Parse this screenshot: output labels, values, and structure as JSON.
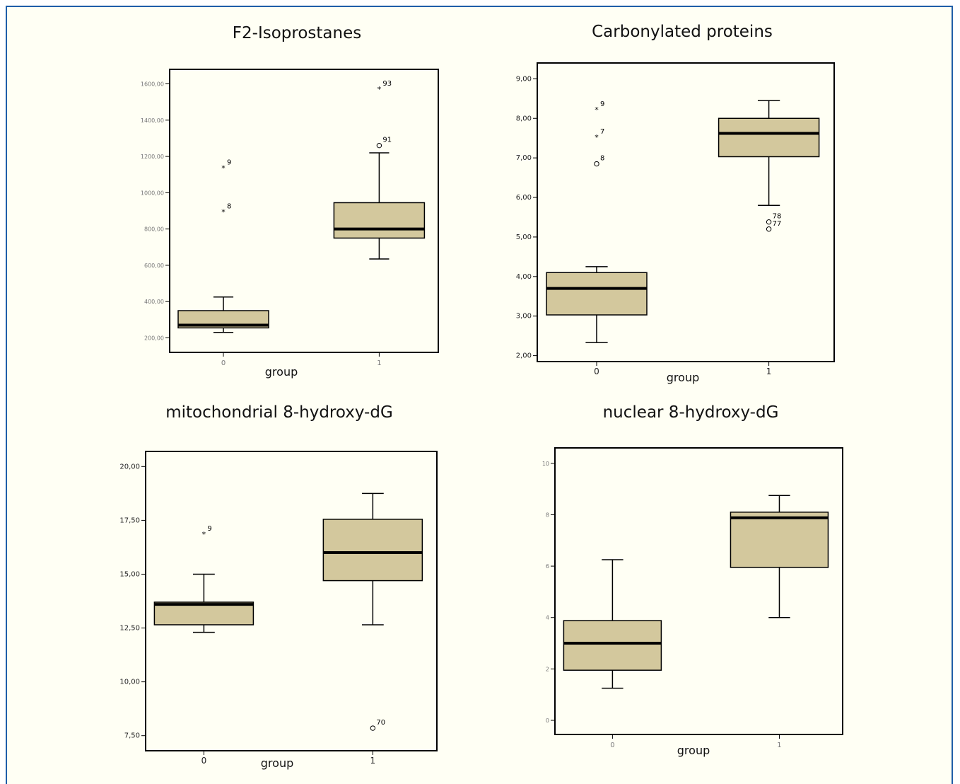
{
  "colors": {
    "box_fill": "#d3c89d",
    "frame_border": "#1f5ea8",
    "background": "#fffff4"
  },
  "chart_data": [
    {
      "type": "boxplot",
      "title": "F2-Isoprostanes",
      "xlabel": "group",
      "ylabel": "",
      "categories": [
        "0",
        "1"
      ],
      "ylim": [
        120,
        1680
      ],
      "yticks": [
        200,
        400,
        600,
        800,
        1000,
        1200,
        1400,
        1600
      ],
      "ytick_labels": [
        "200,00",
        "400,00",
        "600,00",
        "800,00",
        "1000,00",
        "1200,00",
        "1400,00",
        "1600,00"
      ],
      "boxes": [
        {
          "group": "0",
          "whisker_low": 230,
          "q1": 255,
          "median": 270,
          "q3": 350,
          "whisker_high": 425
        },
        {
          "group": "1",
          "whisker_low": 635,
          "q1": 750,
          "median": 800,
          "q3": 945,
          "whisker_high": 1220
        }
      ],
      "outliers": [
        {
          "group": "0",
          "value": 1135,
          "label": "9",
          "marker": "star"
        },
        {
          "group": "0",
          "value": 895,
          "label": "8",
          "marker": "star"
        },
        {
          "group": "1",
          "value": 1570,
          "label": "93",
          "marker": "star"
        },
        {
          "group": "1",
          "value": 1260,
          "label": "91",
          "marker": "circle"
        }
      ]
    },
    {
      "type": "boxplot",
      "title": "Carbonylated proteins",
      "xlabel": "group",
      "ylabel": "",
      "categories": [
        "0",
        "1"
      ],
      "ylim": [
        1.85,
        9.4
      ],
      "yticks": [
        2,
        3,
        4,
        5,
        6,
        7,
        8,
        9
      ],
      "ytick_labels": [
        "2,00",
        "3,00",
        "4,00",
        "5,00",
        "6,00",
        "7,00",
        "8,00",
        "9,00"
      ],
      "boxes": [
        {
          "group": "0",
          "whisker_low": 2.33,
          "q1": 3.03,
          "median": 3.7,
          "q3": 4.1,
          "whisker_high": 4.25
        },
        {
          "group": "1",
          "whisker_low": 5.8,
          "q1": 7.03,
          "median": 7.62,
          "q3": 8.0,
          "whisker_high": 8.45
        }
      ],
      "outliers": [
        {
          "group": "0",
          "value": 8.22,
          "label": "9",
          "marker": "star"
        },
        {
          "group": "0",
          "value": 7.52,
          "label": "7",
          "marker": "star"
        },
        {
          "group": "0",
          "value": 6.85,
          "label": "8",
          "marker": "circle"
        },
        {
          "group": "1",
          "value": 5.38,
          "label": "78",
          "marker": "circle"
        },
        {
          "group": "1",
          "value": 5.2,
          "label": "77",
          "marker": "circle"
        }
      ]
    },
    {
      "type": "boxplot",
      "title": "mitochondrial 8-hydroxy-dG",
      "xlabel": "group",
      "ylabel": "",
      "categories": [
        "0",
        "1"
      ],
      "ylim": [
        6.8,
        20.7
      ],
      "yticks": [
        7.5,
        10,
        12.5,
        15,
        17.5,
        20
      ],
      "ytick_labels": [
        "7,50",
        "10,00",
        "12,50",
        "15,00",
        "17,50",
        "20,00"
      ],
      "boxes": [
        {
          "group": "0",
          "whisker_low": 12.3,
          "q1": 12.65,
          "median": 13.6,
          "q3": 13.7,
          "whisker_high": 15.0
        },
        {
          "group": "1",
          "whisker_low": 12.65,
          "q1": 14.7,
          "median": 16.0,
          "q3": 17.55,
          "whisker_high": 18.75
        }
      ],
      "outliers": [
        {
          "group": "0",
          "value": 16.85,
          "label": "9",
          "marker": "star"
        },
        {
          "group": "1",
          "value": 7.85,
          "label": "70",
          "marker": "circle"
        }
      ]
    },
    {
      "type": "boxplot",
      "title": "nuclear 8-hydroxy-dG",
      "xlabel": "group",
      "ylabel": "",
      "categories": [
        "0",
        "1"
      ],
      "ylim": [
        -0.55,
        10.6
      ],
      "yticks": [
        0,
        2,
        4,
        6,
        8,
        10
      ],
      "ytick_labels": [
        "0",
        "2",
        "4",
        "6",
        "8",
        "10"
      ],
      "boxes": [
        {
          "group": "0",
          "whisker_low": 1.25,
          "q1": 1.95,
          "median": 3.0,
          "q3": 3.88,
          "whisker_high": 6.25
        },
        {
          "group": "1",
          "whisker_low": 4.0,
          "q1": 5.95,
          "median": 7.88,
          "q3": 8.1,
          "whisker_high": 8.75
        }
      ],
      "outliers": []
    }
  ]
}
